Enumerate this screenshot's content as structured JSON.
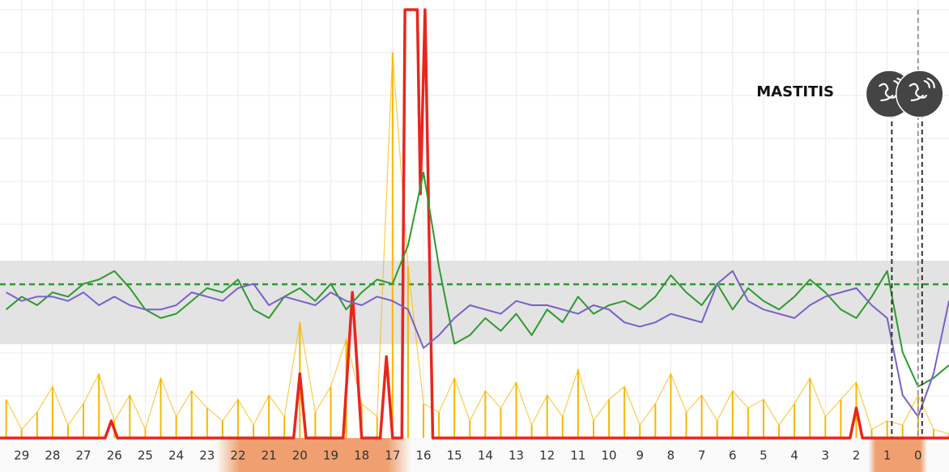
{
  "chart_data": {
    "type": "line",
    "xlim": [
      29.7,
      -1
    ],
    "xticks": [
      29,
      28,
      27,
      26,
      25,
      24,
      23,
      22,
      21,
      20,
      19,
      18,
      17,
      16,
      15,
      14,
      13,
      12,
      11,
      10,
      9,
      8,
      7,
      6,
      5,
      4,
      3,
      2,
      1,
      0
    ],
    "ylim": [
      0,
      100
    ],
    "normal_range": [
      21.9,
      41.4
    ],
    "target": 35.9,
    "highlights": [
      [
        22.7,
        16.4
      ],
      [
        1.6,
        -0.3
      ]
    ],
    "events": [
      0.85,
      -0.13
    ],
    "today": 0,
    "annotation": "MASTITIS",
    "x": [
      29.5,
      29,
      28.5,
      28,
      27.5,
      27,
      26.5,
      26,
      25.5,
      25,
      24.5,
      24,
      23.5,
      23,
      22.5,
      22,
      21.5,
      21,
      20.5,
      20,
      19.5,
      19,
      18.5,
      18,
      17.5,
      17,
      16.5,
      16,
      15.5,
      15,
      14.5,
      14,
      13.5,
      13,
      12.5,
      12,
      11.5,
      11,
      10.5,
      10,
      9.5,
      9,
      8.5,
      8,
      7.5,
      7,
      6.5,
      6,
      5.5,
      5,
      4.5,
      4,
      3.5,
      3,
      2.5,
      2,
      1.5,
      1,
      0.5,
      0,
      -0.5,
      -1
    ],
    "series": [
      {
        "color": "#f5b800",
        "style": "spike",
        "values": [
          9,
          2,
          6,
          12,
          3,
          8,
          15,
          4,
          10,
          2,
          14,
          5,
          11,
          7,
          4,
          9,
          3,
          10,
          5,
          27,
          6,
          12,
          23,
          8,
          5,
          90,
          40,
          8,
          6,
          14,
          4,
          11,
          7,
          13,
          3,
          10,
          5,
          16,
          4,
          9,
          12,
          3,
          8,
          15,
          6,
          10,
          4,
          11,
          7,
          9,
          3,
          8,
          14,
          5,
          9,
          13,
          2,
          4,
          3,
          10,
          2,
          1
        ]
      },
      {
        "color": "#e8261c",
        "style": "line",
        "x": [
          29.7,
          26.3,
          26.1,
          25.9,
          20.2,
          20,
          19.8,
          18.6,
          18.3,
          18,
          17.4,
          17.2,
          17,
          16.7,
          16.6,
          16.2,
          16.1,
          15.95,
          15.7,
          2.2,
          2,
          1.8,
          -1
        ],
        "values": [
          0,
          0,
          4,
          0,
          0,
          15,
          0,
          0,
          34,
          0,
          0,
          19,
          0,
          0,
          100,
          100,
          57,
          100,
          0,
          0,
          7,
          0,
          0
        ]
      },
      {
        "color": "#2e9a2e",
        "style": "line",
        "values": [
          30,
          33,
          31,
          34,
          33,
          36,
          37,
          39,
          35,
          30,
          28,
          29,
          32,
          35,
          34,
          37,
          30,
          28,
          33,
          35,
          32,
          36,
          30,
          34,
          37,
          36,
          45,
          62,
          40,
          22,
          24,
          28,
          25,
          29,
          24,
          30,
          27,
          33,
          29,
          31,
          32,
          30,
          33,
          38,
          34,
          31,
          36,
          30,
          35,
          32,
          30,
          33,
          37,
          34,
          30,
          28,
          33,
          39,
          20,
          12,
          14,
          17
        ]
      },
      {
        "color": "#7b5fc9",
        "style": "line",
        "values": [
          34,
          32,
          33,
          33,
          32,
          34,
          31,
          33,
          31,
          30,
          30,
          31,
          34,
          33,
          32,
          35,
          36,
          31,
          33,
          32,
          31,
          34,
          32,
          31,
          33,
          32,
          30,
          21,
          24,
          28,
          31,
          30,
          29,
          32,
          31,
          31,
          30,
          29,
          31,
          30,
          27,
          26,
          27,
          29,
          28,
          27,
          36,
          39,
          32,
          30,
          29,
          28,
          31,
          33,
          34,
          35,
          31,
          28,
          10,
          5,
          15,
          32
        ]
      }
    ]
  }
}
